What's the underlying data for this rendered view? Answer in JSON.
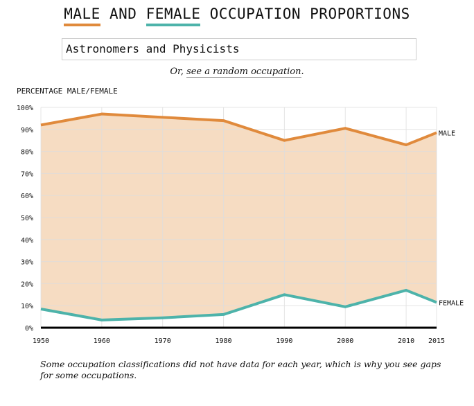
{
  "title": {
    "male": "MALE",
    "and": "AND",
    "female": "FEMALE",
    "rest": "OCCUPATION PROPORTIONS"
  },
  "search": {
    "value": "Astronomers and Physicists"
  },
  "random": {
    "prefix": "Or,",
    "link": "see a random occupation",
    "suffix": "."
  },
  "note": "Some occupation classifications did not have data for each year, which is why you see gaps for some occupations.",
  "chart_data": {
    "type": "line",
    "ylabel": "PERCENTAGE MALE/FEMALE",
    "x": [
      1950,
      1960,
      1970,
      1980,
      1990,
      2000,
      2010,
      2015
    ],
    "x_tick_labels": [
      "1950",
      "1960",
      "1970",
      "1980",
      "1990",
      "2000",
      "2010",
      "2015"
    ],
    "y_tick_labels": [
      "0%",
      "10%",
      "20%",
      "30%",
      "40%",
      "50%",
      "60%",
      "70%",
      "80%",
      "90%",
      "100%"
    ],
    "ylim": [
      0,
      100
    ],
    "grid": true,
    "fill_between_series": true,
    "series": [
      {
        "name": "MALE",
        "color": "#e08a3c",
        "values": [
          92,
          97,
          95.5,
          94,
          85,
          90.5,
          83,
          88.5
        ]
      },
      {
        "name": "FEMALE",
        "color": "#4db3aa",
        "values": [
          8.5,
          3.5,
          4.5,
          6,
          15,
          9.5,
          17,
          11.5
        ]
      }
    ],
    "fill_color": "#f6dcc2"
  }
}
